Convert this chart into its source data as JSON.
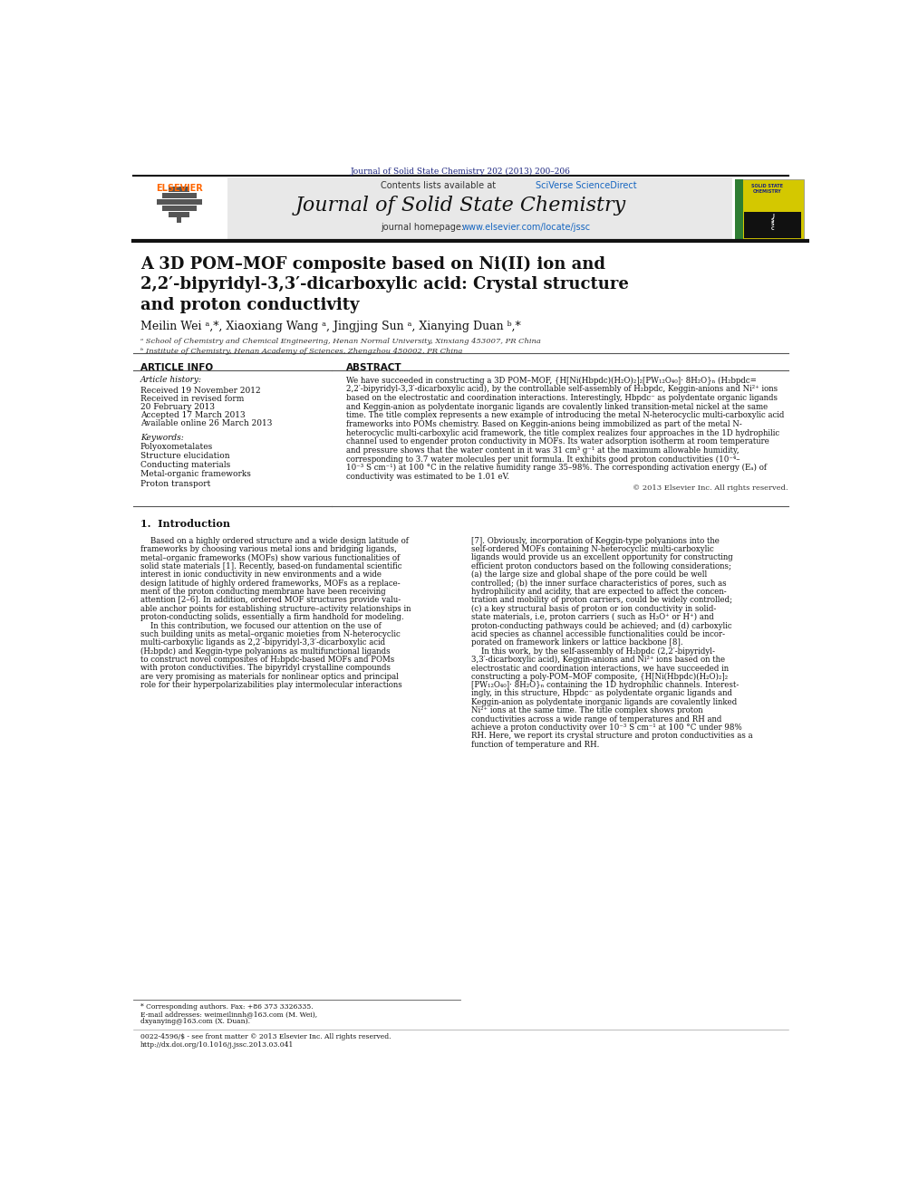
{
  "page_width": 9.92,
  "page_height": 13.23,
  "bg_color": "#ffffff",
  "journal_ref_text": "Journal of Solid State Chemistry 202 (2013) 200–206",
  "journal_ref_color": "#1a237e",
  "header_bg": "#e8e8e8",
  "header_sciverse_color": "#1565C0",
  "header_journal_title": "Journal of Solid State Chemistry",
  "header_homepage_url": "www.elsevier.com/locate/jssc",
  "header_url_color": "#1565C0",
  "article_info_title": "ARTICLE INFO",
  "abstract_title": "ABSTRACT",
  "article_history_label": "Article history:",
  "received1": "Received 19 November 2012",
  "revised_label": "Received in revised form",
  "revised_date": "20 February 2013",
  "accepted": "Accepted 17 March 2013",
  "available": "Available online 26 March 2013",
  "keywords_label": "Keywords:",
  "keyword1": "Polyoxometalates",
  "keyword2": "Structure elucidation",
  "keyword3": "Conducting materials",
  "keyword4": "Metal-organic frameworks",
  "keyword5": "Proton transport",
  "copyright_text": "© 2013 Elsevier Inc. All rights reserved.",
  "intro_heading": "1.  Introduction",
  "footnote_corresponding": "* Corresponding authors. Fax: +86 373 3326335.",
  "footnote_email": "E-mail addresses: weimeilinnh@163.com (M. Wei),",
  "footnote_email2": "dxyanying@163.com (X. Duan).",
  "footnote_issn": "0022-4596/$ - see front matter © 2013 Elsevier Inc. All rights reserved.",
  "footnote_doi": "http://dx.doi.org/10.1016/j.jssc.2013.03.041",
  "elsevier_color": "#FF6600"
}
